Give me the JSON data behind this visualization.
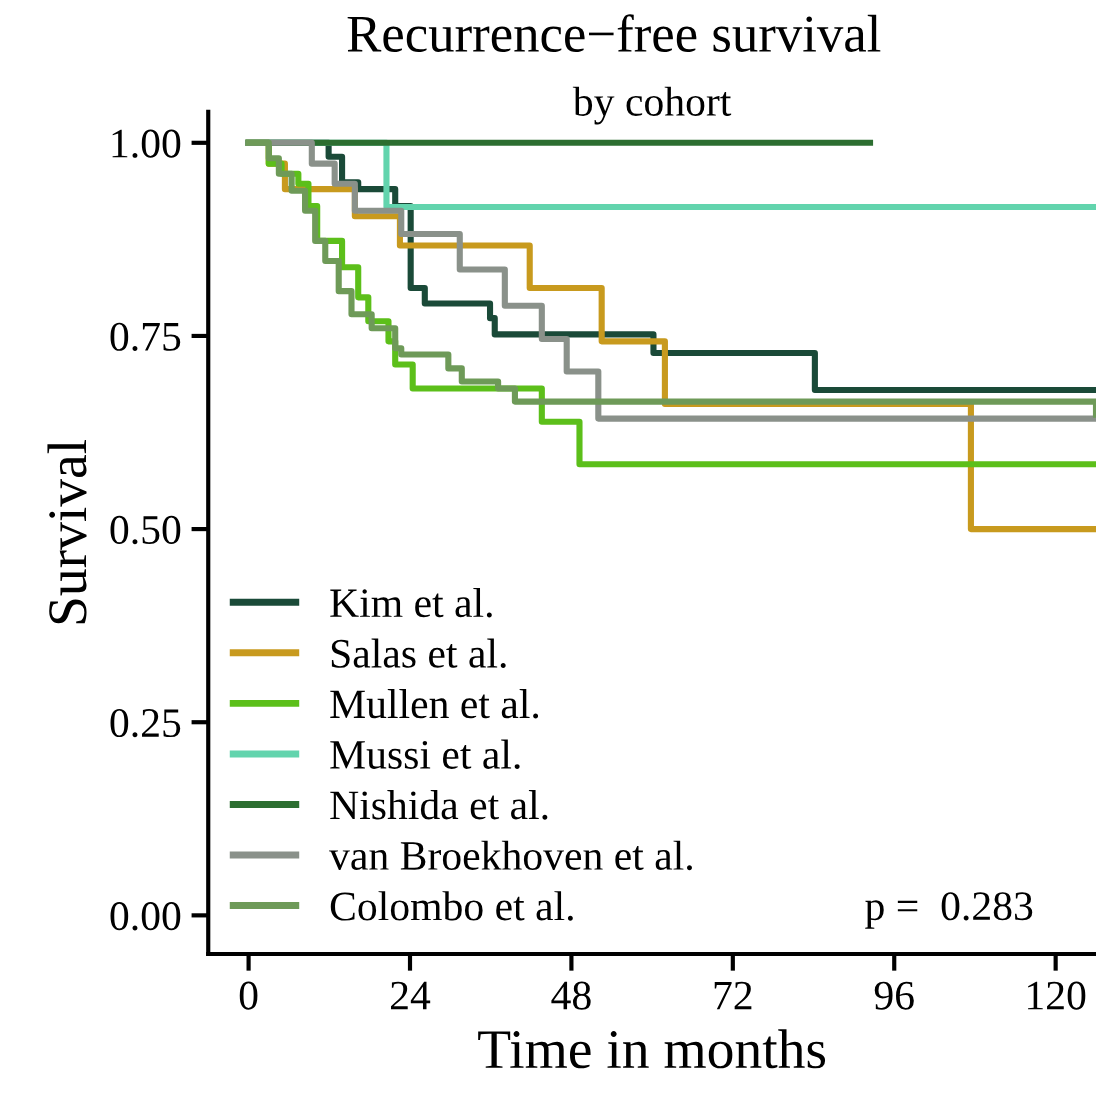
{
  "chart_data": {
    "type": "step",
    "title": "Recurrence−free survival",
    "subtitle": "by cohort",
    "xlabel": "Time in months",
    "ylabel": "Survival",
    "xlim": [
      -6,
      126
    ],
    "xticks": [
      0,
      24,
      48,
      72,
      96,
      120
    ],
    "ylim": [
      -0.05,
      1.04
    ],
    "yticks": [
      {
        "value": 0,
        "label": "0.00"
      },
      {
        "value": 0.25,
        "label": "0.25"
      },
      {
        "value": 0.5,
        "label": "0.50"
      },
      {
        "value": 0.75,
        "label": "0.75"
      },
      {
        "value": 1,
        "label": "1.00"
      }
    ],
    "grid": false,
    "legend": "bottom left",
    "annotations": [
      "p =  0.283"
    ],
    "series": [
      {
        "name": "Kim et al.",
        "color": "#1a4a38",
        "x": [
          0,
          11.9,
          13.9,
          16.3,
          21.8,
          24.1,
          26.2,
          35.9,
          36.6,
          60.2,
          84.2,
          126
        ],
        "values": [
          1.0,
          0.982,
          0.949,
          0.94,
          0.918,
          0.812,
          0.792,
          0.773,
          0.752,
          0.728,
          0.68,
          0.68
        ]
      },
      {
        "name": "Salas et al.",
        "color": "#c89a1e",
        "x": [
          0,
          3.0,
          5.4,
          15.8,
          22.5,
          41.8,
          52.5,
          61.9,
          107.4,
          126
        ],
        "values": [
          1.0,
          0.973,
          0.94,
          0.905,
          0.867,
          0.812,
          0.743,
          0.662,
          0.5,
          0.5
        ]
      },
      {
        "name": "Mullen et al.",
        "color": "#5cbf1a",
        "x": [
          0,
          3.0,
          4.9,
          7.4,
          8.9,
          10.2,
          13.9,
          16.3,
          17.8,
          20.8,
          21.8,
          24.4,
          43.6,
          49.2,
          126
        ],
        "values": [
          1.0,
          0.973,
          0.96,
          0.947,
          0.918,
          0.873,
          0.839,
          0.8,
          0.769,
          0.743,
          0.713,
          0.682,
          0.639,
          0.584,
          0.584
        ]
      },
      {
        "name": "Mussi et al.",
        "color": "#62d4ad",
        "x": [
          0,
          20.5,
          126
        ],
        "values": [
          1.0,
          0.917,
          0.917
        ]
      },
      {
        "name": "Nishida et al.",
        "color": "#2c6e30",
        "x": [
          0,
          92.4
        ],
        "values": [
          1.0,
          1.0
        ]
      },
      {
        "name": "van Broekhoven et al.",
        "color": "#8a918a",
        "x": [
          0,
          9.4,
          12.8,
          15.8,
          22.7,
          31.4,
          38.1,
          43.6,
          47.3,
          52.0,
          126
        ],
        "values": [
          1.0,
          0.973,
          0.947,
          0.912,
          0.882,
          0.836,
          0.789,
          0.746,
          0.704,
          0.643,
          0.643
        ]
      },
      {
        "name": "Colombo et al.",
        "color": "#6e9a58",
        "x": [
          0,
          3.0,
          4.5,
          6.4,
          8.4,
          9.9,
          11.4,
          13.4,
          15.3,
          18.3,
          21.8,
          22.7,
          29.7,
          31.7,
          37.1,
          39.6,
          126
        ],
        "values": [
          1.0,
          0.98,
          0.96,
          0.938,
          0.912,
          0.873,
          0.847,
          0.808,
          0.778,
          0.76,
          0.734,
          0.726,
          0.708,
          0.691,
          0.682,
          0.665,
          0.648
        ]
      }
    ]
  }
}
